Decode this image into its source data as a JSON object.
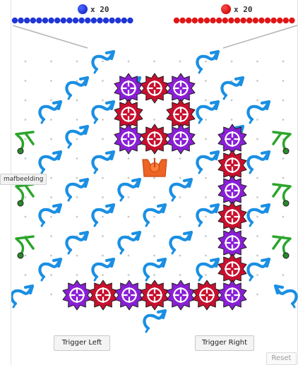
{
  "counters": {
    "blue": {
      "label": "x 20",
      "color": "#1f35d6",
      "balls": 20
    },
    "red": {
      "label": "x 20",
      "color": "#e01616",
      "balls": 20
    }
  },
  "tooltip": {
    "text": "mafbeelding"
  },
  "buttons": {
    "trigger_left": "Trigger Left",
    "trigger_right": "Trigger Right",
    "reset": "Reset"
  },
  "colors": {
    "ramp": "#1a8fe3",
    "gear_purple": "#8a1fd6",
    "gear_red": "#c8102e",
    "bit": "#ee6424",
    "crossover": "#2aa52a",
    "peg": "#c8c8c8"
  },
  "pieces": {
    "ramp_icon": "ramp-icon",
    "gear_icon": "gear-bit-icon",
    "bit_icon": "bit-icon",
    "crossover_icon": "crossover-icon"
  }
}
